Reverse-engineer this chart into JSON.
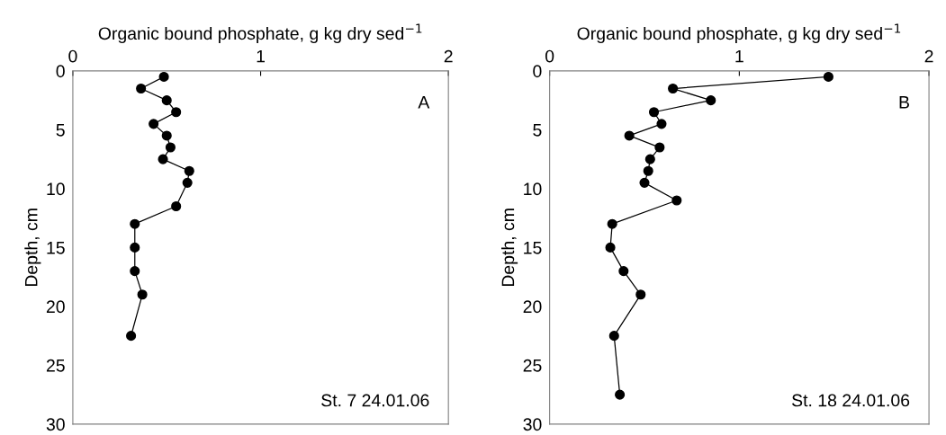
{
  "chart_data": [
    {
      "type": "line",
      "xlabel": "Organic bound phosphate, g kg dry sed$^{−1}$",
      "ylabel": "Depth, cm",
      "marker": "circle",
      "line_style": "solid",
      "xlim": [
        0,
        2
      ],
      "xticks": [
        0,
        1,
        2
      ],
      "ylim": [
        30,
        0
      ],
      "yticks": [
        0,
        5,
        10,
        15,
        20,
        25,
        30
      ],
      "series": [
        {
          "color": "#000000",
          "x": [
            0.485,
            0.363,
            0.5,
            0.55,
            0.43,
            0.5,
            0.52,
            0.48,
            0.62,
            0.61,
            0.55,
            0.33,
            0.33,
            0.33,
            0.37,
            0.31
          ],
          "values": [
            0.5,
            1.5,
            2.5,
            3.5,
            4.5,
            5.5,
            6.5,
            7.5,
            8.5,
            9.5,
            11.5,
            13,
            15,
            17,
            19,
            22.5
          ]
        }
      ],
      "annotations": [
        "A",
        "St. 7 24.01.06"
      ]
    },
    {
      "type": "line",
      "xlabel": "Organic bound phosphate, g kg dry sed$^{−1}$",
      "ylabel": "Depth, cm",
      "marker": "circle",
      "line_style": "solid",
      "xlim": [
        0,
        2
      ],
      "xticks": [
        0,
        1,
        2
      ],
      "ylim": [
        30,
        0
      ],
      "yticks": [
        0,
        5,
        10,
        15,
        20,
        25,
        30
      ],
      "series": [
        {
          "color": "#000000",
          "x": [
            1.47,
            0.65,
            0.85,
            0.55,
            0.59,
            0.42,
            0.58,
            0.53,
            0.52,
            0.5,
            0.67,
            0.33,
            0.32,
            0.39,
            0.48,
            0.34,
            0.37
          ],
          "values": [
            0.5,
            1.5,
            2.5,
            3.5,
            4.5,
            5.5,
            6.5,
            7.5,
            8.5,
            9.5,
            11,
            13,
            15,
            17,
            19,
            22.5,
            27.5
          ]
        }
      ],
      "annotations": [
        "B",
        "St. 18 24.01.06"
      ]
    }
  ]
}
